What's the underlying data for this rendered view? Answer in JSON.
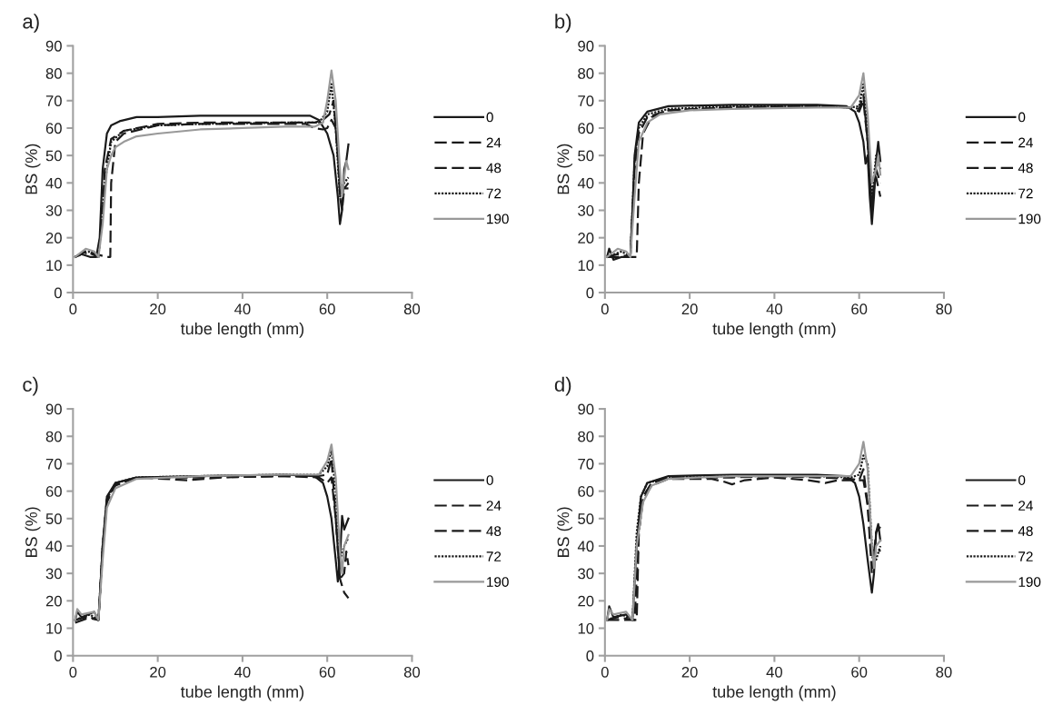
{
  "chart_data": [
    {
      "type": "line",
      "title": "a)",
      "xlabel": "tube length (mm)",
      "ylabel": "BS (%)",
      "xlim": [
        0,
        80
      ],
      "ylim": [
        0,
        90
      ],
      "xticks": [
        0,
        20,
        40,
        60,
        80
      ],
      "yticks": [
        0,
        10,
        20,
        30,
        40,
        50,
        60,
        70,
        80,
        90
      ],
      "grid": false,
      "legend": "right",
      "series": [
        {
          "name": "0",
          "color": "#1a1a1a",
          "line_style": "solid",
          "x": [
            0.5,
            2,
            4,
            5.5,
            6.3,
            7,
            8,
            9,
            11,
            15,
            20,
            30,
            40,
            50,
            56,
            58,
            60,
            61.5,
            62.5,
            63,
            63.5,
            64,
            64.5,
            65
          ],
          "values": [
            13,
            14,
            13,
            13,
            20,
            45,
            58,
            61,
            62.5,
            64,
            64,
            64.5,
            64.5,
            64.5,
            64.5,
            63,
            58,
            50,
            35,
            25,
            30,
            45,
            48,
            54
          ]
        },
        {
          "name": "24",
          "color": "#1a1a1a",
          "line_style": "dashed",
          "x": [
            0.5,
            3,
            6,
            7,
            7.5,
            9,
            12,
            20,
            30,
            40,
            50,
            57,
            59,
            60.5,
            61.5,
            62.5,
            63,
            63.5,
            64,
            65
          ],
          "values": [
            13,
            15,
            13,
            30,
            45,
            56,
            59,
            61.5,
            62,
            62,
            62,
            62,
            63,
            65,
            70,
            50,
            35,
            30,
            38,
            40
          ]
        },
        {
          "name": "48",
          "color": "#1a1a1a",
          "line_style": "dashed",
          "x": [
            0.5,
            3,
            8,
            8.8,
            9,
            10,
            12,
            20,
            30,
            40,
            55,
            57,
            59,
            60,
            61,
            62,
            63,
            64,
            65
          ],
          "values": [
            13,
            15,
            13,
            13,
            40,
            55,
            58,
            61,
            61.5,
            61.5,
            61.5,
            60,
            59.5,
            60,
            63,
            60,
            40,
            38,
            38
          ]
        },
        {
          "name": "72",
          "color": "#1a1a1a",
          "line_style": "dotted",
          "x": [
            0.5,
            4,
            6,
            7.5,
            9,
            12,
            20,
            30,
            50,
            58,
            60,
            61,
            62,
            63,
            64,
            65
          ],
          "values": [
            13,
            15,
            13,
            40,
            55,
            59,
            61,
            61.5,
            62,
            62,
            66,
            76,
            60,
            35,
            40,
            42
          ]
        },
        {
          "name": "190",
          "color": "#999999",
          "line_style": "solid",
          "x": [
            0.5,
            3,
            5,
            6,
            7,
            8,
            9,
            10,
            12,
            15,
            20,
            30,
            40,
            50,
            57,
            59,
            60,
            61,
            62,
            63,
            63.5,
            64,
            64.5,
            65
          ],
          "values": [
            13,
            16,
            15,
            13,
            25,
            45,
            50,
            53,
            55,
            57,
            58,
            59.5,
            60,
            60.5,
            60.5,
            62,
            70,
            81,
            70,
            45,
            35,
            42,
            48,
            45
          ]
        }
      ]
    },
    {
      "type": "line",
      "title": "b)",
      "xlabel": "tube length (mm)",
      "ylabel": "BS (%)",
      "xlim": [
        0,
        80
      ],
      "ylim": [
        0,
        90
      ],
      "xticks": [
        0,
        20,
        40,
        60,
        80
      ],
      "yticks": [
        0,
        10,
        20,
        30,
        40,
        50,
        60,
        70,
        80,
        90
      ],
      "grid": false,
      "legend": "right",
      "series": [
        {
          "name": "0",
          "color": "#1a1a1a",
          "line_style": "solid",
          "x": [
            0.5,
            1,
            2,
            4,
            6,
            6.5,
            7,
            8,
            10,
            15,
            30,
            50,
            57,
            59,
            60,
            61,
            61.5,
            62,
            62.5,
            63,
            63.5,
            64,
            64.5,
            65
          ],
          "values": [
            13,
            16,
            12,
            13,
            13,
            30,
            50,
            62,
            66,
            68,
            68.5,
            68.5,
            68,
            66,
            62,
            55,
            47,
            50,
            35,
            25,
            35,
            48,
            55,
            48
          ]
        },
        {
          "name": "24",
          "color": "#1a1a1a",
          "line_style": "dashed",
          "x": [
            0.5,
            3,
            6,
            7,
            8,
            10,
            15,
            30,
            50,
            58,
            60,
            61,
            62,
            63,
            63.5,
            64,
            65
          ],
          "values": [
            13,
            14,
            13,
            45,
            58,
            64,
            66.5,
            67.5,
            68,
            67.5,
            66,
            70,
            55,
            30,
            40,
            42,
            35
          ]
        },
        {
          "name": "48",
          "color": "#1a1a1a",
          "line_style": "dashed",
          "x": [
            0.5,
            4,
            7.5,
            8,
            9,
            11,
            15,
            30,
            50,
            58,
            60,
            61,
            62,
            63,
            64,
            65
          ],
          "values": [
            13,
            13,
            13,
            40,
            58,
            64,
            66.5,
            67.5,
            68,
            67.5,
            67,
            72,
            55,
            30,
            45,
            40
          ]
        },
        {
          "name": "72",
          "color": "#1a1a1a",
          "line_style": "dotted",
          "x": [
            0.5,
            4,
            6,
            7,
            8,
            10,
            15,
            30,
            50,
            58,
            60,
            61,
            62,
            63,
            64,
            65
          ],
          "values": [
            13,
            15,
            13,
            48,
            60,
            65,
            67,
            68,
            68,
            67.5,
            68,
            76,
            60,
            35,
            50,
            45
          ]
        },
        {
          "name": "190",
          "color": "#999999",
          "line_style": "solid",
          "x": [
            0.5,
            3,
            5,
            6,
            7,
            8,
            10,
            13,
            20,
            30,
            50,
            58,
            60,
            61,
            62,
            63,
            64,
            64.5,
            65
          ],
          "values": [
            13,
            16,
            15,
            13,
            35,
            55,
            62,
            65,
            66.5,
            67,
            67.5,
            67.5,
            72,
            80,
            65,
            40,
            45,
            50,
            43
          ]
        }
      ]
    },
    {
      "type": "line",
      "title": "c)",
      "xlabel": "tube length (mm)",
      "ylabel": "BS (%)",
      "xlim": [
        0,
        80
      ],
      "ylim": [
        0,
        90
      ],
      "xticks": [
        0,
        20,
        40,
        60,
        80
      ],
      "yticks": [
        0,
        10,
        20,
        30,
        40,
        50,
        60,
        70,
        80,
        90
      ],
      "grid": false,
      "legend": "right",
      "series": [
        {
          "name": "0",
          "color": "#1a1a1a",
          "line_style": "solid",
          "x": [
            0.5,
            1,
            2,
            5,
            6,
            7,
            8,
            10,
            15,
            30,
            50,
            57,
            59,
            60,
            61,
            62,
            62.5,
            63,
            63.5,
            64,
            65
          ],
          "values": [
            13,
            16,
            14,
            16,
            13,
            40,
            58,
            63,
            65,
            65.5,
            66,
            65.5,
            63,
            58,
            50,
            35,
            27,
            35,
            51,
            46,
            50
          ]
        },
        {
          "name": "24",
          "color": "#1a1a1a",
          "line_style": "dashed",
          "x": [
            0.5,
            3,
            6,
            7,
            8,
            10,
            15,
            27,
            35,
            50,
            58,
            60,
            61,
            62,
            63,
            64,
            64.5,
            65
          ],
          "values": [
            13,
            14,
            13,
            40,
            57,
            62.5,
            65,
            64,
            65,
            65.5,
            65.5,
            66,
            72,
            50,
            28,
            30,
            38,
            33
          ]
        },
        {
          "name": "48",
          "color": "#1a1a1a",
          "line_style": "dashed",
          "x": [
            0.5,
            4,
            6,
            7,
            8,
            10,
            15,
            30,
            50,
            58,
            60,
            61,
            62,
            63,
            64,
            65
          ],
          "values": [
            12,
            14,
            13,
            38,
            56,
            62,
            65,
            65,
            65.5,
            65,
            63,
            65,
            50,
            28,
            23,
            21
          ]
        },
        {
          "name": "72",
          "color": "#1a1a1a",
          "line_style": "dotted",
          "x": [
            0.5,
            4,
            6,
            7,
            8,
            10,
            15,
            30,
            50,
            58,
            60,
            61,
            62,
            63,
            64,
            65
          ],
          "values": [
            13,
            15,
            13,
            40,
            57,
            63,
            65,
            65.5,
            66,
            66,
            69,
            75,
            60,
            35,
            40,
            43
          ]
        },
        {
          "name": "190",
          "color": "#999999",
          "line_style": "solid",
          "x": [
            0.5,
            1,
            2,
            5,
            6,
            7,
            8,
            10,
            15,
            30,
            50,
            58,
            60,
            61,
            62,
            63,
            63.5,
            64,
            65
          ],
          "values": [
            13,
            17,
            15,
            16,
            13,
            35,
            54,
            61,
            64.5,
            65.5,
            66,
            66,
            71,
            77,
            65,
            38,
            30,
            40,
            44
          ]
        }
      ]
    },
    {
      "type": "line",
      "title": "d)",
      "xlabel": "tube length (mm)",
      "ylabel": "BS (%)",
      "xlim": [
        0,
        80
      ],
      "ylim": [
        0,
        90
      ],
      "xticks": [
        0,
        20,
        40,
        60,
        80
      ],
      "yticks": [
        0,
        10,
        20,
        30,
        40,
        50,
        60,
        70,
        80,
        90
      ],
      "grid": false,
      "legend": "right",
      "series": [
        {
          "name": "0",
          "color": "#1a1a1a",
          "line_style": "solid",
          "x": [
            0.5,
            1,
            2,
            5,
            6.5,
            7.5,
            8.5,
            10,
            15,
            30,
            50,
            57,
            59,
            60,
            61,
            62,
            63,
            63.5,
            64,
            64.5,
            65
          ],
          "values": [
            13,
            18,
            14,
            15,
            13,
            40,
            58,
            63,
            65.5,
            66,
            66,
            65.5,
            63,
            58,
            48,
            35,
            23,
            30,
            45,
            48,
            42
          ]
        },
        {
          "name": "24",
          "color": "#1a1a1a",
          "line_style": "dashed",
          "x": [
            0.5,
            3,
            7,
            8,
            9,
            11,
            15,
            25,
            30,
            40,
            50,
            58,
            60,
            61,
            62,
            63,
            64,
            65
          ],
          "values": [
            13,
            14,
            13,
            45,
            58,
            63,
            65,
            65,
            65,
            65.5,
            65,
            64.5,
            64,
            68,
            55,
            30,
            45,
            47
          ]
        },
        {
          "name": "48",
          "color": "#1a1a1a",
          "line_style": "dashed",
          "x": [
            0.5,
            4,
            7.5,
            8,
            9,
            11,
            15,
            25,
            28,
            30,
            33,
            40,
            48,
            52,
            55,
            58,
            60,
            61,
            62,
            63,
            64,
            65
          ],
          "values": [
            13,
            13,
            13,
            45,
            57,
            62,
            64.5,
            64.5,
            63.5,
            62.5,
            64,
            65,
            64,
            63,
            64,
            64,
            64,
            64,
            55,
            35,
            40,
            38
          ]
        },
        {
          "name": "72",
          "color": "#1a1a1a",
          "line_style": "dotted",
          "x": [
            0.5,
            4,
            6.5,
            7.5,
            8.5,
            10,
            15,
            30,
            50,
            58,
            60,
            61,
            62,
            63,
            64,
            65
          ],
          "values": [
            13,
            15,
            13,
            45,
            58,
            63,
            65,
            65.5,
            65.5,
            65,
            66,
            73,
            70,
            40,
            35,
            40
          ]
        },
        {
          "name": "190",
          "color": "#999999",
          "line_style": "solid",
          "x": [
            0.5,
            1,
            2,
            5,
            6.5,
            7.5,
            9,
            11,
            15,
            30,
            50,
            58,
            60,
            61,
            62,
            63,
            63.5,
            64,
            65
          ],
          "values": [
            13,
            17,
            15,
            16,
            13,
            40,
            56,
            62,
            64.5,
            65.5,
            65.5,
            65.5,
            70,
            78,
            68,
            40,
            32,
            40,
            42
          ]
        }
      ]
    }
  ]
}
